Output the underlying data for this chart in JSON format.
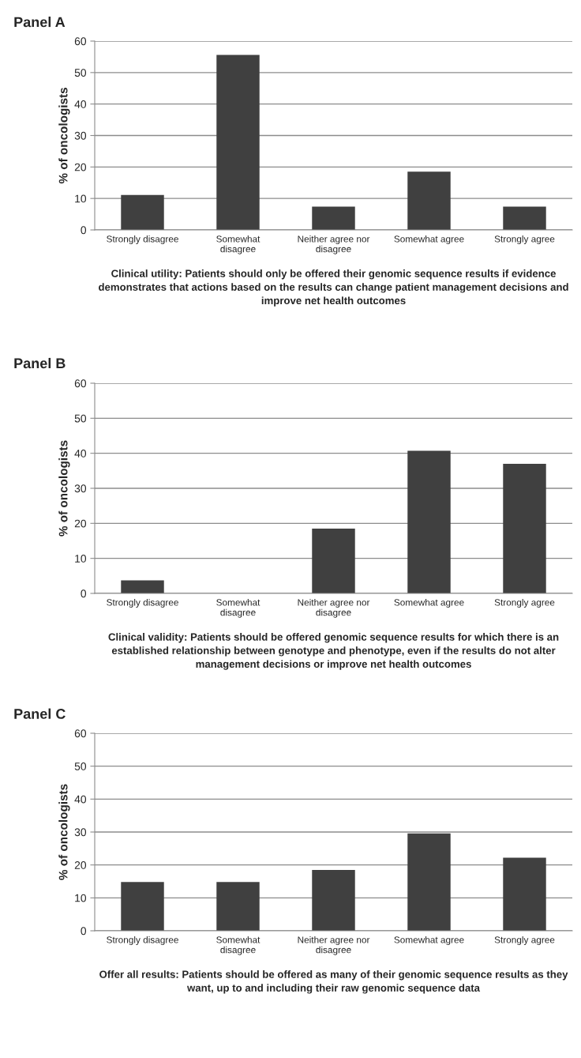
{
  "chart_data": [
    {
      "type": "bar",
      "title": "Panel A",
      "xlabel": "Clinical utility: Patients should only be offered their genomic sequence results if evidence demonstrates that actions based on the results can change patient management decisions and improve net health outcomes",
      "ylabel": "% of oncologists",
      "categories": [
        "Strongly disagree",
        "Somewhat\ndisagree",
        "Neither agree nor\ndisagree",
        "Somewhat agree",
        "Strongly agree"
      ],
      "values": [
        11.1,
        55.6,
        7.4,
        18.5,
        7.4
      ],
      "color": "#404040",
      "ylim": [
        0,
        60
      ],
      "yticks": [
        0,
        10,
        20,
        30,
        40,
        50,
        60
      ],
      "grid": "y"
    },
    {
      "type": "bar",
      "title": "Panel B",
      "xlabel": "Clinical validity: Patients should be offered genomic sequence results for which there is an established relationship between genotype and phenotype, even if the results do not alter management decisions or improve net health outcomes",
      "ylabel": "% of oncologists",
      "categories": [
        "Strongly disagree",
        "Somewhat\ndisagree",
        "Neither agree nor\ndisagree",
        "Somewhat agree",
        "Strongly agree"
      ],
      "values": [
        3.7,
        0,
        18.5,
        40.7,
        37.0
      ],
      "color": "#404040",
      "ylim": [
        0,
        60
      ],
      "yticks": [
        0,
        10,
        20,
        30,
        40,
        50,
        60
      ],
      "grid": "y"
    },
    {
      "type": "bar",
      "title": "Panel C",
      "xlabel": "Offer all results: Patients should be offered as many of their genomic sequence results as they want, up to and including their raw genomic sequence data",
      "ylabel": "% of oncologists",
      "categories": [
        "Strongly disagree",
        "Somewhat\ndisagree",
        "Neither agree nor\ndisagree",
        "Somewhat agree",
        "Strongly agree"
      ],
      "values": [
        14.8,
        14.8,
        18.5,
        29.6,
        22.2
      ],
      "color": "#404040",
      "ylim": [
        0,
        60
      ],
      "yticks": [
        0,
        10,
        20,
        30,
        40,
        50,
        60
      ],
      "grid": "y"
    }
  ]
}
